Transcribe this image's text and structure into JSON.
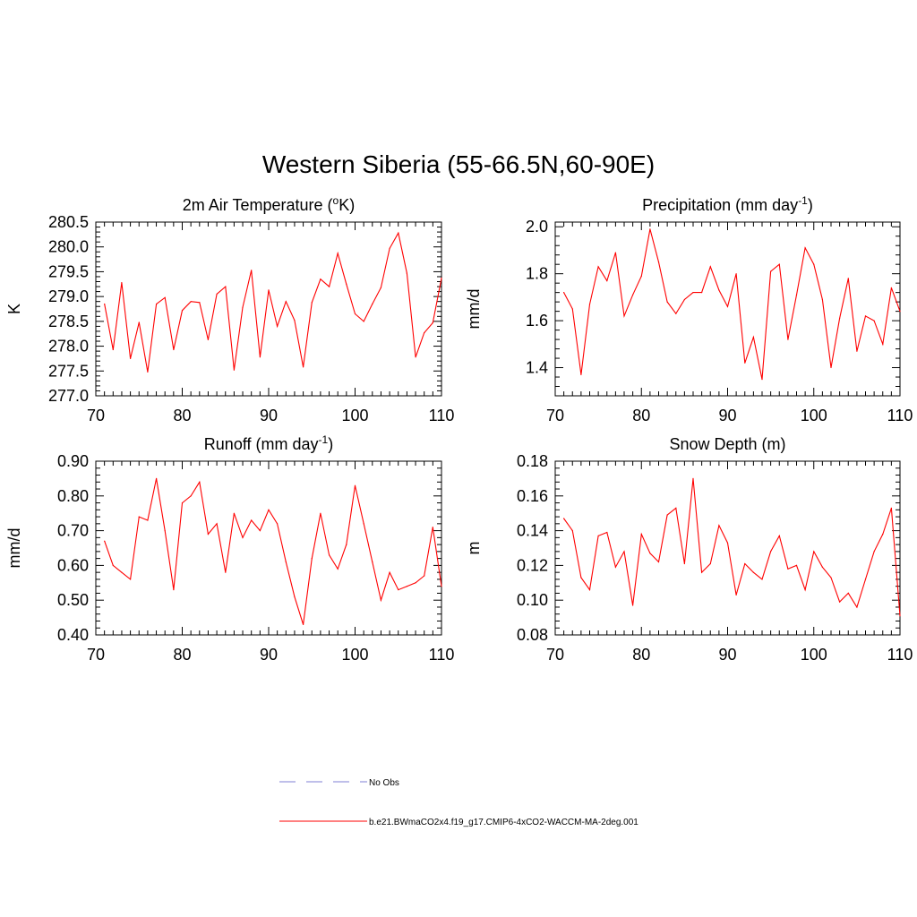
{
  "main_title": "Western Siberia (55-66.5N,60-90E)",
  "colors": {
    "series": "#ff0000",
    "obs": "#9999dd",
    "axis": "#000000"
  },
  "chart_data": [
    {
      "type": "line",
      "title": "2m Air Temperature (",
      "title_sup": "o",
      "title_tail": "K)",
      "ylabel": "K",
      "xlim": [
        70,
        110
      ],
      "ylim": [
        277.0,
        280.5
      ],
      "xticks": [
        "70",
        "80",
        "90",
        "100",
        "110"
      ],
      "yticks": [
        "277.0",
        "277.5",
        "278.0",
        "278.5",
        "279.0",
        "279.5",
        "280.0",
        "280.5"
      ],
      "series": [
        {
          "name": "b.e21.BWmaCO2x4.f19_g17.CMIP6-4xCO2-WACCM-MA-2deg.001",
          "x": [
            71,
            72,
            73,
            74,
            75,
            76,
            77,
            78,
            79,
            80,
            81,
            82,
            83,
            84,
            85,
            86,
            87,
            88,
            89,
            90,
            91,
            92,
            93,
            94,
            95,
            96,
            97,
            98,
            99,
            100,
            101,
            102,
            103,
            104,
            105,
            106,
            107,
            108,
            109,
            110
          ],
          "values": [
            278.85,
            277.93,
            279.28,
            277.75,
            278.48,
            277.48,
            278.85,
            278.98,
            277.93,
            278.72,
            278.9,
            278.88,
            278.13,
            279.05,
            279.2,
            277.52,
            278.78,
            279.53,
            277.78,
            279.13,
            278.4,
            278.9,
            278.52,
            277.58,
            278.88,
            279.35,
            279.2,
            279.87,
            279.25,
            278.65,
            278.5,
            278.85,
            279.18,
            279.97,
            280.28,
            279.47,
            277.78,
            278.27,
            278.47,
            279.37
          ]
        }
      ]
    },
    {
      "type": "line",
      "title": "Precipitation (mm day",
      "title_sup": "-1",
      "title_tail": ")",
      "ylabel": "mm/d",
      "xlim": [
        70,
        110
      ],
      "ylim": [
        1.28,
        2.02
      ],
      "xticks": [
        "70",
        "80",
        "90",
        "100",
        "110"
      ],
      "yticks": [
        "1.4",
        "1.6",
        "1.8",
        "2.0"
      ],
      "series": [
        {
          "name": "b.e21.BWmaCO2x4.f19_g17.CMIP6-4xCO2-WACCM-MA-2deg.001",
          "x": [
            71,
            72,
            73,
            74,
            75,
            76,
            77,
            78,
            79,
            80,
            81,
            82,
            83,
            84,
            85,
            86,
            87,
            88,
            89,
            90,
            91,
            92,
            93,
            94,
            95,
            96,
            97,
            98,
            99,
            100,
            101,
            102,
            103,
            104,
            105,
            106,
            107,
            108,
            109,
            110
          ],
          "values": [
            1.72,
            1.65,
            1.37,
            1.67,
            1.83,
            1.77,
            1.89,
            1.62,
            1.71,
            1.79,
            1.99,
            1.85,
            1.68,
            1.63,
            1.69,
            1.72,
            1.72,
            1.83,
            1.73,
            1.66,
            1.8,
            1.42,
            1.53,
            1.35,
            1.81,
            1.84,
            1.52,
            1.71,
            1.91,
            1.84,
            1.69,
            1.4,
            1.61,
            1.78,
            1.47,
            1.62,
            1.6,
            1.5,
            1.74,
            1.64
          ]
        }
      ]
    },
    {
      "type": "line",
      "title": "Runoff (mm day",
      "title_sup": "-1",
      "title_tail": ")",
      "ylabel": "mm/d",
      "xlim": [
        70,
        110
      ],
      "ylim": [
        0.4,
        0.9
      ],
      "xticks": [
        "70",
        "80",
        "90",
        "100",
        "110"
      ],
      "yticks": [
        "0.40",
        "0.50",
        "0.60",
        "0.70",
        "0.80",
        "0.90"
      ],
      "series": [
        {
          "name": "b.e21.BWmaCO2x4.f19_g17.CMIP6-4xCO2-WACCM-MA-2deg.001",
          "x": [
            71,
            72,
            73,
            74,
            75,
            76,
            77,
            78,
            79,
            80,
            81,
            82,
            83,
            84,
            85,
            86,
            87,
            88,
            89,
            90,
            91,
            92,
            93,
            94,
            95,
            96,
            97,
            98,
            99,
            100,
            101,
            102,
            103,
            104,
            105,
            106,
            107,
            108,
            109,
            110
          ],
          "values": [
            0.67,
            0.6,
            0.58,
            0.56,
            0.74,
            0.73,
            0.85,
            0.7,
            0.53,
            0.78,
            0.8,
            0.84,
            0.69,
            0.72,
            0.58,
            0.75,
            0.68,
            0.73,
            0.7,
            0.76,
            0.72,
            0.61,
            0.51,
            0.43,
            0.62,
            0.75,
            0.63,
            0.59,
            0.66,
            0.83,
            0.72,
            0.61,
            0.5,
            0.58,
            0.53,
            0.54,
            0.55,
            0.57,
            0.71,
            0.54
          ]
        }
      ]
    },
    {
      "type": "line",
      "title": "Snow Depth (m)",
      "title_sup": "",
      "title_tail": "",
      "ylabel": "m",
      "xlim": [
        70,
        110
      ],
      "ylim": [
        0.08,
        0.18
      ],
      "xticks": [
        "70",
        "80",
        "90",
        "100",
        "110"
      ],
      "yticks": [
        "0.08",
        "0.10",
        "0.12",
        "0.14",
        "0.16",
        "0.18"
      ],
      "series": [
        {
          "name": "b.e21.BWmaCO2x4.f19_g17.CMIP6-4xCO2-WACCM-MA-2deg.001",
          "x": [
            71,
            72,
            73,
            74,
            75,
            76,
            77,
            78,
            79,
            80,
            81,
            82,
            83,
            84,
            85,
            86,
            87,
            88,
            89,
            90,
            91,
            92,
            93,
            94,
            95,
            96,
            97,
            98,
            99,
            100,
            101,
            102,
            103,
            104,
            105,
            106,
            107,
            108,
            109,
            110
          ],
          "values": [
            0.147,
            0.14,
            0.113,
            0.106,
            0.137,
            0.139,
            0.119,
            0.128,
            0.097,
            0.138,
            0.127,
            0.122,
            0.149,
            0.153,
            0.121,
            0.17,
            0.116,
            0.121,
            0.143,
            0.133,
            0.103,
            0.121,
            0.116,
            0.112,
            0.128,
            0.137,
            0.118,
            0.12,
            0.106,
            0.128,
            0.119,
            0.113,
            0.099,
            0.104,
            0.096,
            0.112,
            0.128,
            0.138,
            0.153,
            0.091
          ]
        }
      ]
    }
  ],
  "legend": {
    "items": [
      {
        "label": "No Obs",
        "style": "dashed",
        "color": "#9999dd"
      },
      {
        "label": "b.e21.BWmaCO2x4.f19_g17.CMIP6-4xCO2-WACCM-MA-2deg.001",
        "style": "solid",
        "color": "#ff0000"
      }
    ]
  }
}
